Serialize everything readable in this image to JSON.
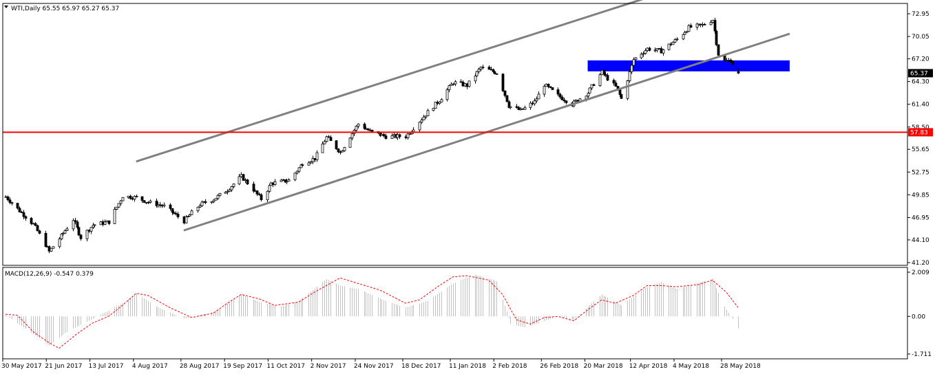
{
  "header": {
    "symbol_title": "WTI,Daily  65.55 65.97 65.27 65.37",
    "indicator_title": "MACD(12,26,9) -0.547 0.379"
  },
  "chart_data": [
    {
      "type": "candlestick",
      "title": "WTI,Daily  65.55 65.97 65.27 65.37",
      "symbol": "WTI",
      "timeframe": "Daily",
      "last_bar": {
        "open": 65.55,
        "high": 65.97,
        "low": 65.27,
        "close": 65.37
      },
      "current_price": {
        "value": 65.37,
        "label": "65.37"
      },
      "y_ticks": [
        {
          "value": 72.95,
          "label": "72.95"
        },
        {
          "value": 70.05,
          "label": "70.05"
        },
        {
          "value": 67.2,
          "label": "67.20"
        },
        {
          "value": 64.3,
          "label": "64.30"
        },
        {
          "value": 61.4,
          "label": "61.40"
        },
        {
          "value": 58.5,
          "label": "58.50"
        },
        {
          "value": 55.65,
          "label": "55.65"
        },
        {
          "value": 52.75,
          "label": "52.75"
        },
        {
          "value": 49.85,
          "label": "49.85"
        },
        {
          "value": 46.95,
          "label": "46.95"
        },
        {
          "value": 44.1,
          "label": "44.10"
        },
        {
          "value": 41.2,
          "label": "41.20"
        }
      ],
      "x_ticks": [
        {
          "date": "2017-05-30",
          "label": "30 May 2017"
        },
        {
          "date": "2017-06-21",
          "label": "21 Jun 2017"
        },
        {
          "date": "2017-07-13",
          "label": "13 Jul 2017"
        },
        {
          "date": "2017-08-04",
          "label": "4 Aug 2017"
        },
        {
          "date": "2017-08-28",
          "label": "28 Aug 2017"
        },
        {
          "date": "2017-09-19",
          "label": "19 Sep 2017"
        },
        {
          "date": "2017-10-11",
          "label": "11 Oct 2017"
        },
        {
          "date": "2017-11-02",
          "label": "2 Nov 2017"
        },
        {
          "date": "2017-11-24",
          "label": "24 Nov 2017"
        },
        {
          "date": "2017-12-18",
          "label": "18 Dec 2017"
        },
        {
          "date": "2018-01-11",
          "label": "11 Jan 2018"
        },
        {
          "date": "2018-02-02",
          "label": "2 Feb 2018"
        },
        {
          "date": "2018-02-26",
          "label": "26 Feb 2018"
        },
        {
          "date": "2018-03-20",
          "label": "20 Mar 2018"
        },
        {
          "date": "2018-04-12",
          "label": "12 Apr 2018"
        },
        {
          "date": "2018-05-04",
          "label": "4 May 2018"
        },
        {
          "date": "2018-05-28",
          "label": "28 May 2018"
        }
      ],
      "close_path": [
        [
          "2017-05-30",
          49.6
        ],
        [
          "2017-06-06",
          47.8
        ],
        [
          "2017-06-13",
          46.1
        ],
        [
          "2017-06-21",
          42.6
        ],
        [
          "2017-06-27",
          44.6
        ],
        [
          "2017-07-03",
          46.7
        ],
        [
          "2017-07-07",
          44.4
        ],
        [
          "2017-07-13",
          46.0
        ],
        [
          "2017-07-21",
          46.4
        ],
        [
          "2017-07-28",
          49.7
        ],
        [
          "2017-08-04",
          49.5
        ],
        [
          "2017-08-10",
          48.9
        ],
        [
          "2017-08-18",
          48.4
        ],
        [
          "2017-08-28",
          46.5
        ],
        [
          "2017-09-05",
          48.6
        ],
        [
          "2017-09-12",
          49.3
        ],
        [
          "2017-09-19",
          50.5
        ],
        [
          "2017-09-26",
          52.2
        ],
        [
          "2017-10-02",
          50.5
        ],
        [
          "2017-10-06",
          49.3
        ],
        [
          "2017-10-11",
          51.3
        ],
        [
          "2017-10-20",
          51.7
        ],
        [
          "2017-10-27",
          53.9
        ],
        [
          "2017-11-02",
          54.5
        ],
        [
          "2017-11-08",
          57.2
        ],
        [
          "2017-11-15",
          55.3
        ],
        [
          "2017-11-24",
          58.9
        ],
        [
          "2017-12-01",
          57.8
        ],
        [
          "2017-12-08",
          57.3
        ],
        [
          "2017-12-18",
          57.3
        ],
        [
          "2017-12-22",
          58.4
        ],
        [
          "2017-12-29",
          60.4
        ],
        [
          "2018-01-04",
          61.9
        ],
        [
          "2018-01-11",
          64.2
        ],
        [
          "2018-01-18",
          63.8
        ],
        [
          "2018-01-25",
          66.1
        ],
        [
          "2018-02-02",
          65.4
        ],
        [
          "2018-02-08",
          61.2
        ],
        [
          "2018-02-14",
          60.6
        ],
        [
          "2018-02-21",
          61.7
        ],
        [
          "2018-02-26",
          63.9
        ],
        [
          "2018-03-05",
          62.5
        ],
        [
          "2018-03-12",
          61.4
        ],
        [
          "2018-03-20",
          62.9
        ],
        [
          "2018-03-27",
          65.5
        ],
        [
          "2018-04-03",
          63.6
        ],
        [
          "2018-04-06",
          62.1
        ],
        [
          "2018-04-12",
          67.1
        ],
        [
          "2018-04-19",
          68.5
        ],
        [
          "2018-04-26",
          68.2
        ],
        [
          "2018-05-04",
          69.7
        ],
        [
          "2018-05-10",
          71.2
        ],
        [
          "2018-05-17",
          71.5
        ],
        [
          "2018-05-22",
          72.2
        ],
        [
          "2018-05-25",
          67.8
        ],
        [
          "2018-05-28",
          66.9
        ],
        [
          "2018-05-31",
          67.0
        ],
        [
          "2018-06-04",
          65.4
        ]
      ],
      "horizontal_line": {
        "value": 57.83,
        "label": "57.83",
        "color": "#ff0000"
      },
      "zone": {
        "from_date": "2018-03-20",
        "to_date": "2018-06-30",
        "low": 65.6,
        "high": 67.0,
        "color": "#0000ff"
      },
      "channel": {
        "color": "#808080",
        "upper": [
          [
            "2017-08-04",
            54.1
          ],
          [
            "2018-04-24",
            75.4
          ]
        ],
        "lower": [
          [
            "2017-08-28",
            45.3
          ],
          [
            "2018-06-30",
            70.4
          ]
        ]
      },
      "colors": {
        "candle": "#000000",
        "up_body": "#ffffff",
        "down_body": "#000000"
      }
    },
    {
      "type": "bar",
      "title": "MACD(12,26,9) -0.547 0.379",
      "macd": -0.547,
      "signal_value": 0.379,
      "y_ticks": [
        {
          "value": 2.009,
          "label": "2.009"
        },
        {
          "value": 0.0,
          "label": "0.00"
        },
        {
          "value": -1.711,
          "label": "-1.711"
        }
      ],
      "histogram_path": [
        [
          "2017-05-30",
          0.05
        ],
        [
          "2017-06-13",
          -0.8
        ],
        [
          "2017-06-21",
          -1.3
        ],
        [
          "2017-06-30",
          -0.7
        ],
        [
          "2017-07-13",
          -0.1
        ],
        [
          "2017-07-28",
          0.6
        ],
        [
          "2017-08-04",
          1.05
        ],
        [
          "2017-08-14",
          0.45
        ],
        [
          "2017-08-28",
          -0.1
        ],
        [
          "2017-09-12",
          0.2
        ],
        [
          "2017-09-26",
          1.0
        ],
        [
          "2017-10-05",
          0.65
        ],
        [
          "2017-10-16",
          0.45
        ],
        [
          "2017-10-25",
          0.7
        ],
        [
          "2017-11-08",
          1.7
        ],
        [
          "2017-11-15",
          1.4
        ],
        [
          "2017-11-24",
          1.25
        ],
        [
          "2017-12-08",
          0.7
        ],
        [
          "2017-12-18",
          0.4
        ],
        [
          "2017-12-29",
          0.7
        ],
        [
          "2018-01-11",
          1.5
        ],
        [
          "2018-01-22",
          1.9
        ],
        [
          "2018-02-02",
          1.6
        ],
        [
          "2018-02-09",
          -0.35
        ],
        [
          "2018-02-16",
          -0.5
        ],
        [
          "2018-03-05",
          0.0
        ],
        [
          "2018-03-13",
          -0.15
        ],
        [
          "2018-03-27",
          1.0
        ],
        [
          "2018-04-06",
          0.5
        ],
        [
          "2018-04-18",
          1.3
        ],
        [
          "2018-04-26",
          1.55
        ],
        [
          "2018-05-04",
          1.25
        ],
        [
          "2018-05-22",
          1.7
        ],
        [
          "2018-05-28",
          0.45
        ],
        [
          "2018-06-04",
          -0.55
        ]
      ],
      "signal_path": [
        [
          "2017-05-30",
          0.1
        ],
        [
          "2017-06-05",
          0.05
        ],
        [
          "2017-06-13",
          -0.7
        ],
        [
          "2017-06-21",
          -1.2
        ],
        [
          "2017-06-26",
          -1.45
        ],
        [
          "2017-07-05",
          -0.8
        ],
        [
          "2017-07-13",
          -0.3
        ],
        [
          "2017-07-21",
          0.0
        ],
        [
          "2017-07-28",
          0.5
        ],
        [
          "2017-08-04",
          1.05
        ],
        [
          "2017-08-10",
          0.95
        ],
        [
          "2017-08-21",
          0.4
        ],
        [
          "2017-09-01",
          -0.05
        ],
        [
          "2017-09-12",
          0.15
        ],
        [
          "2017-09-19",
          0.6
        ],
        [
          "2017-09-26",
          1.0
        ],
        [
          "2017-10-05",
          0.8
        ],
        [
          "2017-10-13",
          0.5
        ],
        [
          "2017-10-25",
          0.65
        ],
        [
          "2017-11-02",
          1.1
        ],
        [
          "2017-11-15",
          1.75
        ],
        [
          "2017-11-24",
          1.5
        ],
        [
          "2017-12-05",
          1.2
        ],
        [
          "2017-12-18",
          0.6
        ],
        [
          "2017-12-25",
          0.75
        ],
        [
          "2018-01-04",
          1.4
        ],
        [
          "2018-01-11",
          1.8
        ],
        [
          "2018-01-18",
          1.85
        ],
        [
          "2018-01-29",
          1.65
        ],
        [
          "2018-02-05",
          1.0
        ],
        [
          "2018-02-12",
          -0.15
        ],
        [
          "2018-02-19",
          -0.35
        ],
        [
          "2018-02-26",
          -0.05
        ],
        [
          "2018-03-05",
          0.0
        ],
        [
          "2018-03-13",
          -0.2
        ],
        [
          "2018-03-20",
          0.3
        ],
        [
          "2018-03-27",
          0.75
        ],
        [
          "2018-04-03",
          0.6
        ],
        [
          "2018-04-12",
          0.95
        ],
        [
          "2018-04-19",
          1.4
        ],
        [
          "2018-04-26",
          1.4
        ],
        [
          "2018-05-04",
          1.35
        ],
        [
          "2018-05-15",
          1.45
        ],
        [
          "2018-05-22",
          1.65
        ],
        [
          "2018-05-29",
          1.1
        ],
        [
          "2018-06-04",
          0.4
        ]
      ],
      "colors": {
        "histogram": "#c0c0c0",
        "signal": "#ff0000"
      }
    }
  ]
}
